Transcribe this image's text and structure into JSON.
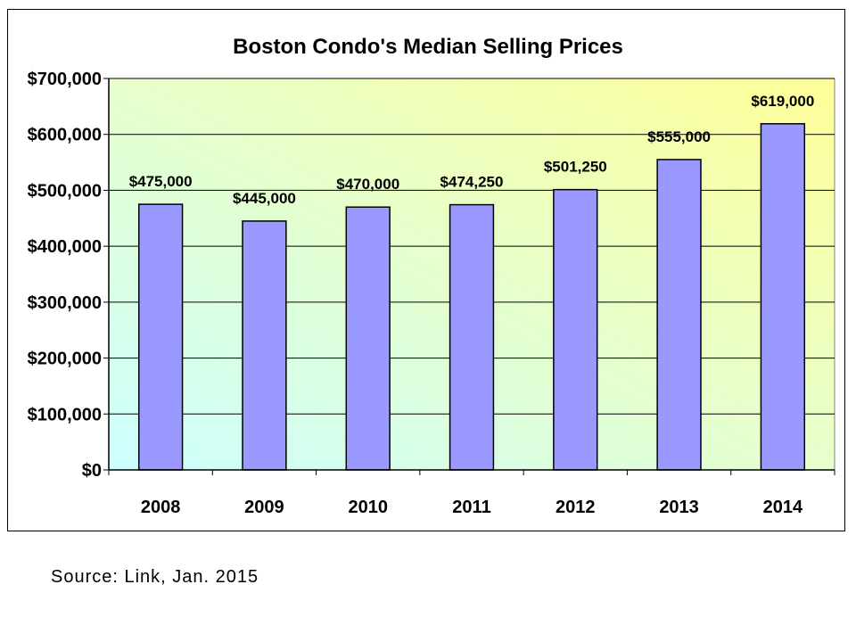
{
  "colors": {
    "bar_fill": "#9999ff",
    "bar_stroke": "#000000",
    "plot_gradient_start": "#ccffff",
    "plot_gradient_end": "#ffff99"
  },
  "source_note": "Source: Link, Jan. 2015",
  "chart_data": {
    "type": "bar",
    "title": "Boston Condo's Median Selling Prices",
    "xlabel": "",
    "ylabel": "",
    "categories": [
      "2008",
      "2009",
      "2010",
      "2011",
      "2012",
      "2013",
      "2014"
    ],
    "values": [
      475000,
      445000,
      470000,
      474250,
      501250,
      555000,
      619000
    ],
    "data_labels": [
      "$475,000",
      "$445,000",
      "$470,000",
      "$474,250",
      "$501,250",
      "$555,000",
      "$619,000"
    ],
    "ylim": [
      0,
      700000
    ],
    "y_ticks": [
      0,
      100000,
      200000,
      300000,
      400000,
      500000,
      600000,
      700000
    ],
    "y_tick_labels": [
      "$0",
      "$100,000",
      "$200,000",
      "$300,000",
      "$400,000",
      "$500,000",
      "$600,000",
      "$700,000"
    ],
    "grid": true,
    "legend": "none"
  }
}
